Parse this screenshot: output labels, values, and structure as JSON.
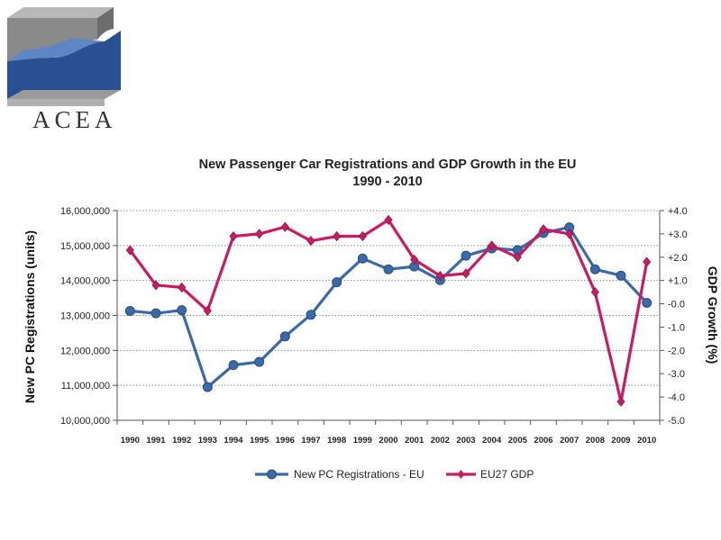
{
  "logo": {
    "text": "ACEA"
  },
  "colors": {
    "registrations": "#3c6aa8",
    "gdp": "#c81c63"
  },
  "chart_data": {
    "type": "line",
    "title": "New Passenger Car Registrations and GDP Growth in the EU",
    "subtitle": "1990 - 2010",
    "ylabel": "New PC Registrations (units)",
    "y2label": "GDP Growth (%)",
    "categories": [
      "1990",
      "1991",
      "1992",
      "1993",
      "1994",
      "1995",
      "1996",
      "1997",
      "1998",
      "1999",
      "2000",
      "2001",
      "2002",
      "2003",
      "2004",
      "2005",
      "2006",
      "2007",
      "2008",
      "2009",
      "2010"
    ],
    "ylim": [
      10000000,
      16000000
    ],
    "yticks": [
      "10,000,000",
      "11,000,000",
      "12,000,000",
      "13,000,000",
      "14,000,000",
      "15,000,000",
      "16,000,000"
    ],
    "y2lim": [
      -5.0,
      4.0
    ],
    "y2ticks": [
      "-5.0",
      "-4.0",
      "-3.0",
      "-2.0",
      "-1.0",
      "-0.0",
      "+1.0",
      "+2.0",
      "+3.0",
      "+4.0"
    ],
    "grid": true,
    "legend_position": "bottom",
    "series": [
      {
        "name": "New PC Registrations - EU",
        "axis": "left",
        "values": [
          13130000,
          13060000,
          13150000,
          10950000,
          11580000,
          11670000,
          12400000,
          13020000,
          13950000,
          14630000,
          14320000,
          14400000,
          14010000,
          14710000,
          14920000,
          14870000,
          15360000,
          15520000,
          14320000,
          14140000,
          13360000
        ]
      },
      {
        "name": "EU27 GDP",
        "axis": "right",
        "values": [
          2.3,
          0.8,
          0.7,
          -0.3,
          2.9,
          3.0,
          3.3,
          2.7,
          2.9,
          2.9,
          3.6,
          1.9,
          1.2,
          1.3,
          2.5,
          2.0,
          3.2,
          3.0,
          0.5,
          -4.2,
          1.8
        ]
      }
    ]
  }
}
